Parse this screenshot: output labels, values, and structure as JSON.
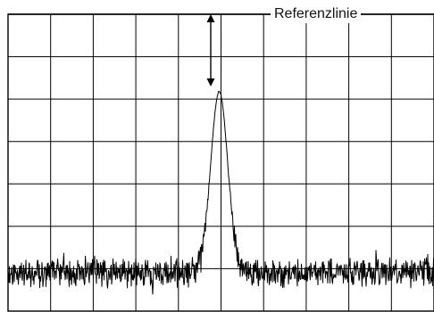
{
  "reference_line": {
    "label": "Referenzlinie"
  },
  "screen": {
    "grid_columns": 10,
    "grid_rows": 7,
    "grid_visible": true,
    "border_color": "#000000",
    "grid_color": "#000000",
    "trace_color": "#000000"
  },
  "spectrum": {
    "description_type": "single-peak-over-noise-floor",
    "peak_position_fraction": 0.5,
    "peak_level_fraction": 0.26,
    "noise_floor_fraction": 0.87
  }
}
